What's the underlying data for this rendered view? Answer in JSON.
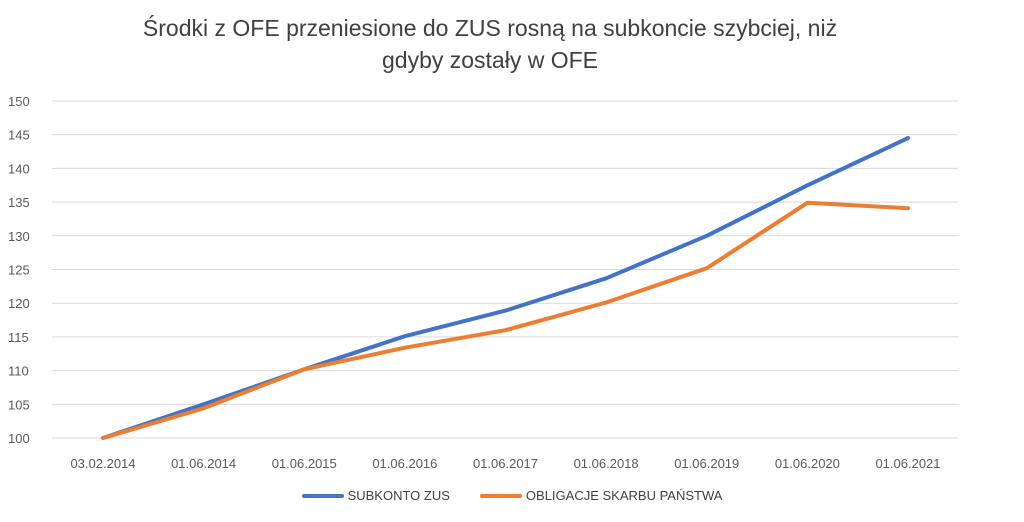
{
  "chart_data": {
    "type": "line",
    "title_line1": "Środki z OFE przeniesione do ZUS rosną na subkoncie szybciej, niż",
    "title_line2": "gdyby zostały w OFE",
    "categories": [
      "03.02.2014",
      "01.06.2014",
      "01.06.2015",
      "01.06.2016",
      "01.06.2017",
      "01.06.2018",
      "01.06.2019",
      "01.06.2020",
      "01.06.2021"
    ],
    "ylim": [
      100,
      150
    ],
    "yticks": [
      100,
      105,
      110,
      115,
      120,
      125,
      130,
      135,
      140,
      145,
      150
    ],
    "grid": true,
    "legend_position": "bottom",
    "series": [
      {
        "name": "SUBKONTO ZUS",
        "color": "#4472C4",
        "values": [
          100,
          105,
          110.2,
          115.1,
          118.9,
          123.7,
          130,
          137.5,
          144.5
        ]
      },
      {
        "name": "OBLIGACJE SKARBU PAŃSTWA",
        "color": "#ED7D31",
        "values": [
          100,
          104.4,
          110.2,
          113.4,
          116,
          120.1,
          125.2,
          134.9,
          134.1
        ]
      }
    ]
  }
}
